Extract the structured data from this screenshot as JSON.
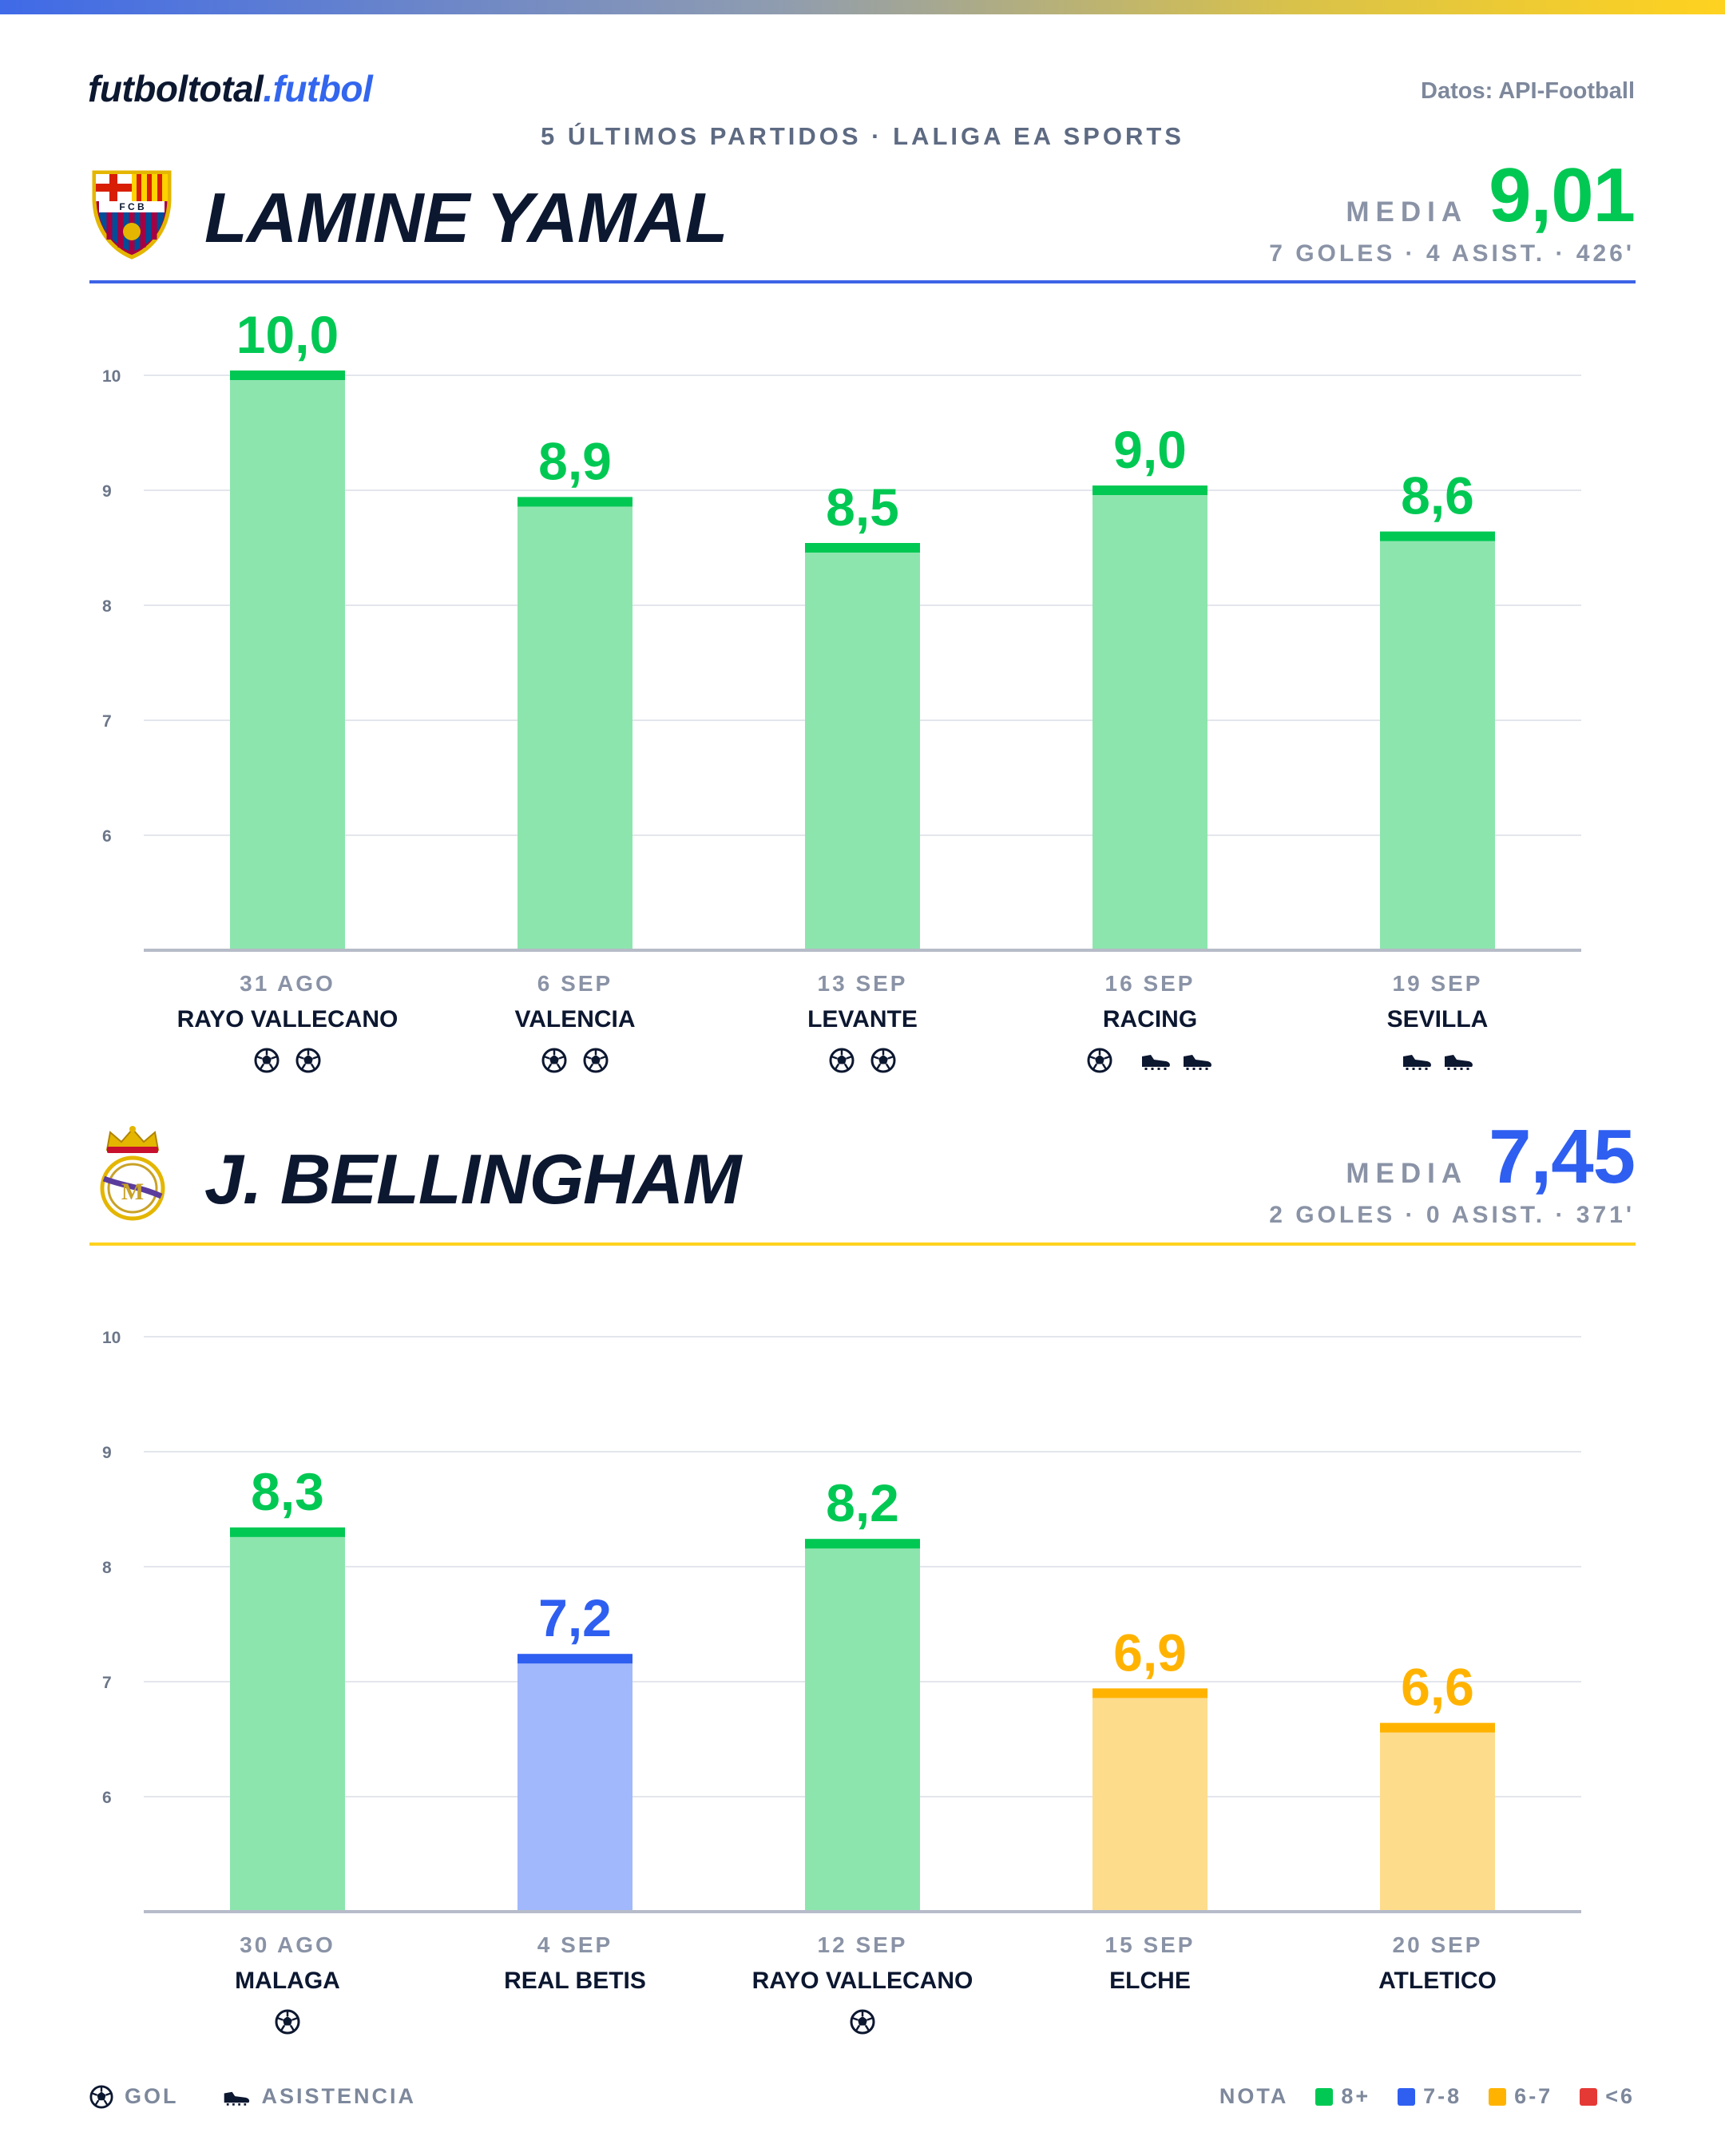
{
  "brand": {
    "name": "futboltotal",
    "suffix": ".futbol"
  },
  "source": "Datos: API-Football",
  "subtitle": "5 ÚLTIMOS PARTIDOS · LALIGA EA SPORTS",
  "colors": {
    "8+": "#00c853",
    "7-8": "#2f5ff0",
    "6-7": "#ffb300",
    "<6": "#e53935",
    "header_rule_yamal": "#3c63e6",
    "header_rule_bellingham": "#ffd21f"
  },
  "players": [
    {
      "name": "LAMINE YAMAL",
      "crest_icon": "fc-barcelona-crest-icon",
      "media_label": "MEDIA",
      "media_value": "9,01",
      "media_color": "#00c853",
      "stats": "7 GOLES · 4 ASIST. · 426'",
      "rule_color": "#3c63e6",
      "chart_data": {
        "type": "bar",
        "ylim": [
          5,
          10
        ],
        "yticks": [
          "6",
          "7",
          "8",
          "9",
          "10"
        ],
        "grid": true,
        "categories": [
          "31 AGO",
          "6 SEP",
          "13 SEP",
          "16 SEP",
          "19 SEP"
        ],
        "opponents": [
          "RAYO VALLECANO",
          "VALENCIA",
          "LEVANTE",
          "RACING",
          "SEVILLA"
        ],
        "values": [
          10.0,
          8.9,
          8.5,
          9.0,
          8.6
        ],
        "labels": [
          "10,0",
          "8,9",
          "8,5",
          "9,0",
          "8,6"
        ],
        "goals": [
          2,
          2,
          2,
          1,
          0
        ],
        "assists": [
          0,
          0,
          0,
          2,
          2
        ]
      }
    },
    {
      "name": "J. BELLINGHAM",
      "crest_icon": "real-madrid-crest-icon",
      "media_label": "MEDIA",
      "media_value": "7,45",
      "media_color": "#2f5ff0",
      "stats": "2 GOLES · 0 ASIST. · 371'",
      "rule_color": "#ffd21f",
      "chart_data": {
        "type": "bar",
        "ylim": [
          5,
          10
        ],
        "yticks": [
          "6",
          "7",
          "8",
          "9",
          "10"
        ],
        "grid": true,
        "categories": [
          "30 AGO",
          "4 SEP",
          "12 SEP",
          "15 SEP",
          "20 SEP"
        ],
        "opponents": [
          "MALAGA",
          "REAL BETIS",
          "RAYO VALLECANO",
          "ELCHE",
          "ATLETICO"
        ],
        "values": [
          8.3,
          7.2,
          8.2,
          6.9,
          6.6
        ],
        "labels": [
          "8,3",
          "7,2",
          "8,2",
          "6,9",
          "6,6"
        ],
        "goals": [
          1,
          0,
          1,
          0,
          0
        ],
        "assists": [
          0,
          0,
          0,
          0,
          0
        ]
      }
    }
  ],
  "legend": {
    "goal": "GOL",
    "assist": "ASISTENCIA",
    "nota": "NOTA",
    "bands": [
      "8+",
      "7-8",
      "6-7",
      "<6"
    ]
  }
}
